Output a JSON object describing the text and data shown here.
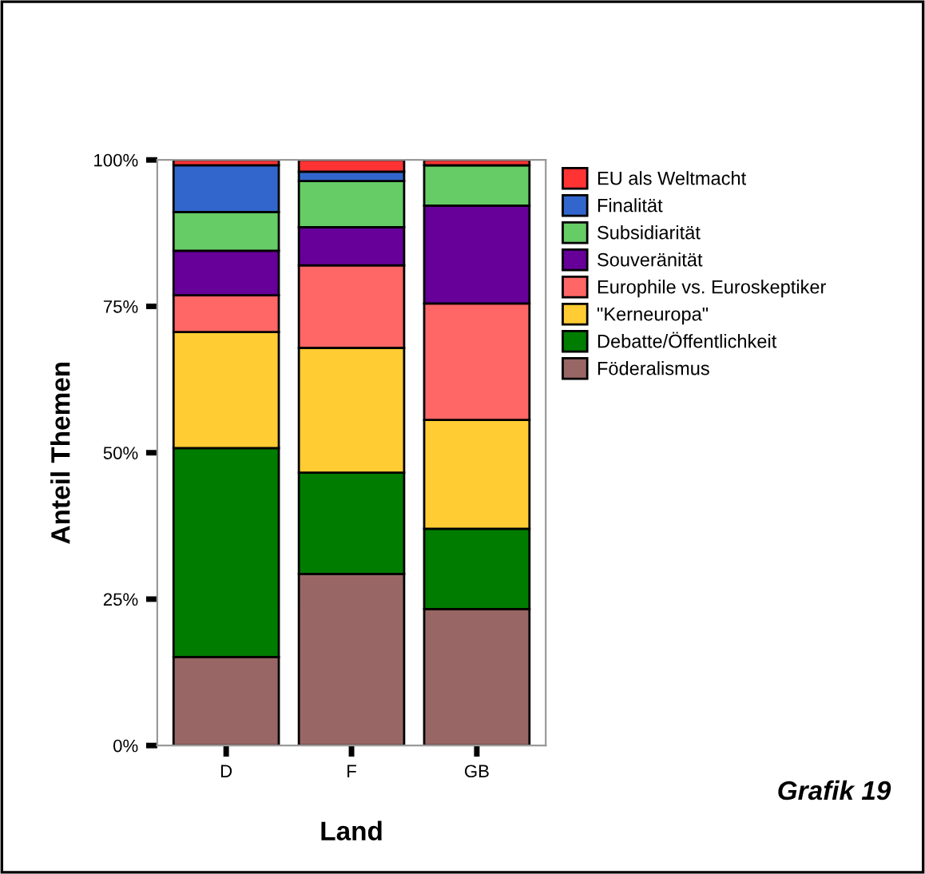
{
  "chart_data": {
    "type": "bar",
    "stacked": true,
    "xlabel": "Land",
    "ylabel": "Anteil Themen",
    "annotations": [
      "Grafik 19"
    ],
    "categories": [
      "D",
      "F",
      "GB"
    ],
    "ylim": [
      0,
      100
    ],
    "yticks": [
      {
        "value": 0,
        "label": "0%"
      },
      {
        "value": 25,
        "label": "25%"
      },
      {
        "value": 50,
        "label": "50%"
      },
      {
        "value": 75,
        "label": "75%"
      },
      {
        "value": 100,
        "label": "100%"
      }
    ],
    "legend": "right",
    "grid": false,
    "series": [
      {
        "name": "Föderalismus",
        "color": "#996666",
        "values": [
          15.1,
          29.3,
          23.3
        ]
      },
      {
        "name": "Debatte/Öffentlichkeit",
        "color": "#007c00",
        "values": [
          35.7,
          17.3,
          13.7
        ]
      },
      {
        "name": "\"Kerneuropa\"",
        "color": "#ffcc33",
        "values": [
          19.8,
          21.3,
          18.6
        ]
      },
      {
        "name": "Europhile vs. Euroskeptiker",
        "color": "#ff6666",
        "values": [
          6.3,
          14.1,
          19.9
        ]
      },
      {
        "name": "Souveränität",
        "color": "#660099",
        "values": [
          7.6,
          6.5,
          16.7
        ]
      },
      {
        "name": "Subsidiarität",
        "color": "#66cc66",
        "values": [
          6.6,
          7.9,
          6.9
        ]
      },
      {
        "name": "Finalität",
        "color": "#3366cc",
        "values": [
          8.0,
          1.6,
          0
        ]
      },
      {
        "name": "EU als Weltmacht",
        "color": "#ff3333",
        "values": [
          0.9,
          2.0,
          0.9
        ]
      }
    ]
  }
}
